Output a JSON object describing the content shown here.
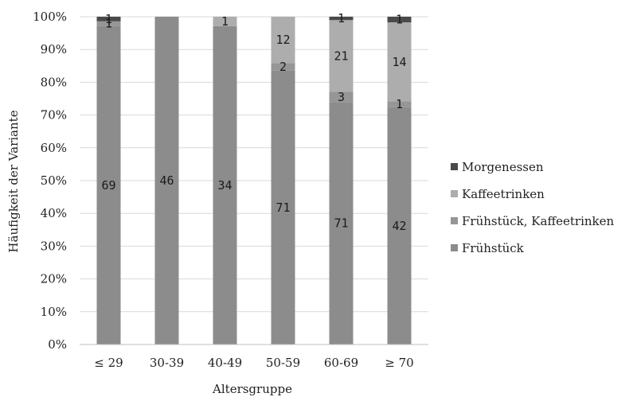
{
  "chart_data": {
    "type": "bar",
    "stacked": true,
    "normalized_percent": true,
    "xlabel": "Altersgruppe",
    "ylabel": "Häufigkeit der Variante",
    "categories": [
      "≤ 29",
      "30-39",
      "40-49",
      "50-59",
      "60-69",
      "≥ 70"
    ],
    "y_ticks": [
      "0%",
      "10%",
      "20%",
      "30%",
      "40%",
      "50%",
      "60%",
      "70%",
      "80%",
      "90%",
      "100%"
    ],
    "ylim": [
      0,
      100
    ],
    "grid": true,
    "legend_position": "right",
    "series": [
      {
        "name": "Frühstück",
        "color": "#8c8c8c",
        "values": [
          69,
          46,
          34,
          71,
          71,
          42
        ]
      },
      {
        "name": "Frühstück, Kaffeetrinken",
        "color": "#969696",
        "values": [
          1,
          0,
          0,
          2,
          3,
          1
        ]
      },
      {
        "name": "Kaffeetrinken",
        "color": "#adadad",
        "values": [
          0,
          0,
          1,
          12,
          21,
          14
        ]
      },
      {
        "name": "Morgenessen",
        "color": "#4a4a4a",
        "values": [
          1,
          0,
          0,
          0,
          1,
          1
        ]
      }
    ]
  }
}
